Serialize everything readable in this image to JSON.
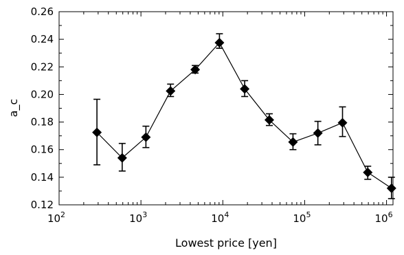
{
  "chart_data": {
    "type": "line",
    "title": "",
    "xlabel": "Lowest price [yen]",
    "ylabel": "a_c",
    "xscale": "log",
    "xlim": [
      100,
      1200000
    ],
    "ylim": [
      0.12,
      0.26
    ],
    "x_ticks": [
      {
        "value": 100,
        "base": "10",
        "exp": "2"
      },
      {
        "value": 1000,
        "base": "10",
        "exp": "3"
      },
      {
        "value": 10000,
        "base": "10",
        "exp": "4"
      },
      {
        "value": 100000,
        "base": "10",
        "exp": "5"
      },
      {
        "value": 1000000,
        "base": "10",
        "exp": "6"
      }
    ],
    "y_ticks": [
      {
        "value": 0.12,
        "label": "0.12"
      },
      {
        "value": 0.14,
        "label": "0.14"
      },
      {
        "value": 0.16,
        "label": "0.16"
      },
      {
        "value": 0.18,
        "label": "0.18"
      },
      {
        "value": 0.2,
        "label": "0.20"
      },
      {
        "value": 0.22,
        "label": "0.22"
      },
      {
        "value": 0.24,
        "label": "0.24"
      },
      {
        "value": 0.26,
        "label": "0.26"
      }
    ],
    "grid": false,
    "marker": "diamond",
    "color": "#000000",
    "series": [
      {
        "points": [
          {
            "x": 290,
            "y": 0.1725,
            "err_low": 0.149,
            "err_high": 0.1965
          },
          {
            "x": 590,
            "y": 0.154,
            "err_low": 0.1445,
            "err_high": 0.1645
          },
          {
            "x": 1150,
            "y": 0.169,
            "err_low": 0.1615,
            "err_high": 0.177
          },
          {
            "x": 2300,
            "y": 0.2025,
            "err_low": 0.1985,
            "err_high": 0.2075
          },
          {
            "x": 4600,
            "y": 0.218,
            "err_low": 0.2155,
            "err_high": 0.221
          },
          {
            "x": 9100,
            "y": 0.2375,
            "err_low": 0.2335,
            "err_high": 0.244
          },
          {
            "x": 18500,
            "y": 0.204,
            "err_low": 0.1985,
            "err_high": 0.21
          },
          {
            "x": 37000,
            "y": 0.1815,
            "err_low": 0.1775,
            "err_high": 0.186
          },
          {
            "x": 72000,
            "y": 0.1655,
            "err_low": 0.16,
            "err_high": 0.1715
          },
          {
            "x": 145000,
            "y": 0.172,
            "err_low": 0.1635,
            "err_high": 0.1805
          },
          {
            "x": 290000,
            "y": 0.1795,
            "err_low": 0.1695,
            "err_high": 0.191
          },
          {
            "x": 590000,
            "y": 0.1435,
            "err_low": 0.1385,
            "err_high": 0.148
          },
          {
            "x": 1150000,
            "y": 0.132,
            "err_low": 0.1245,
            "err_high": 0.14
          }
        ]
      }
    ]
  }
}
